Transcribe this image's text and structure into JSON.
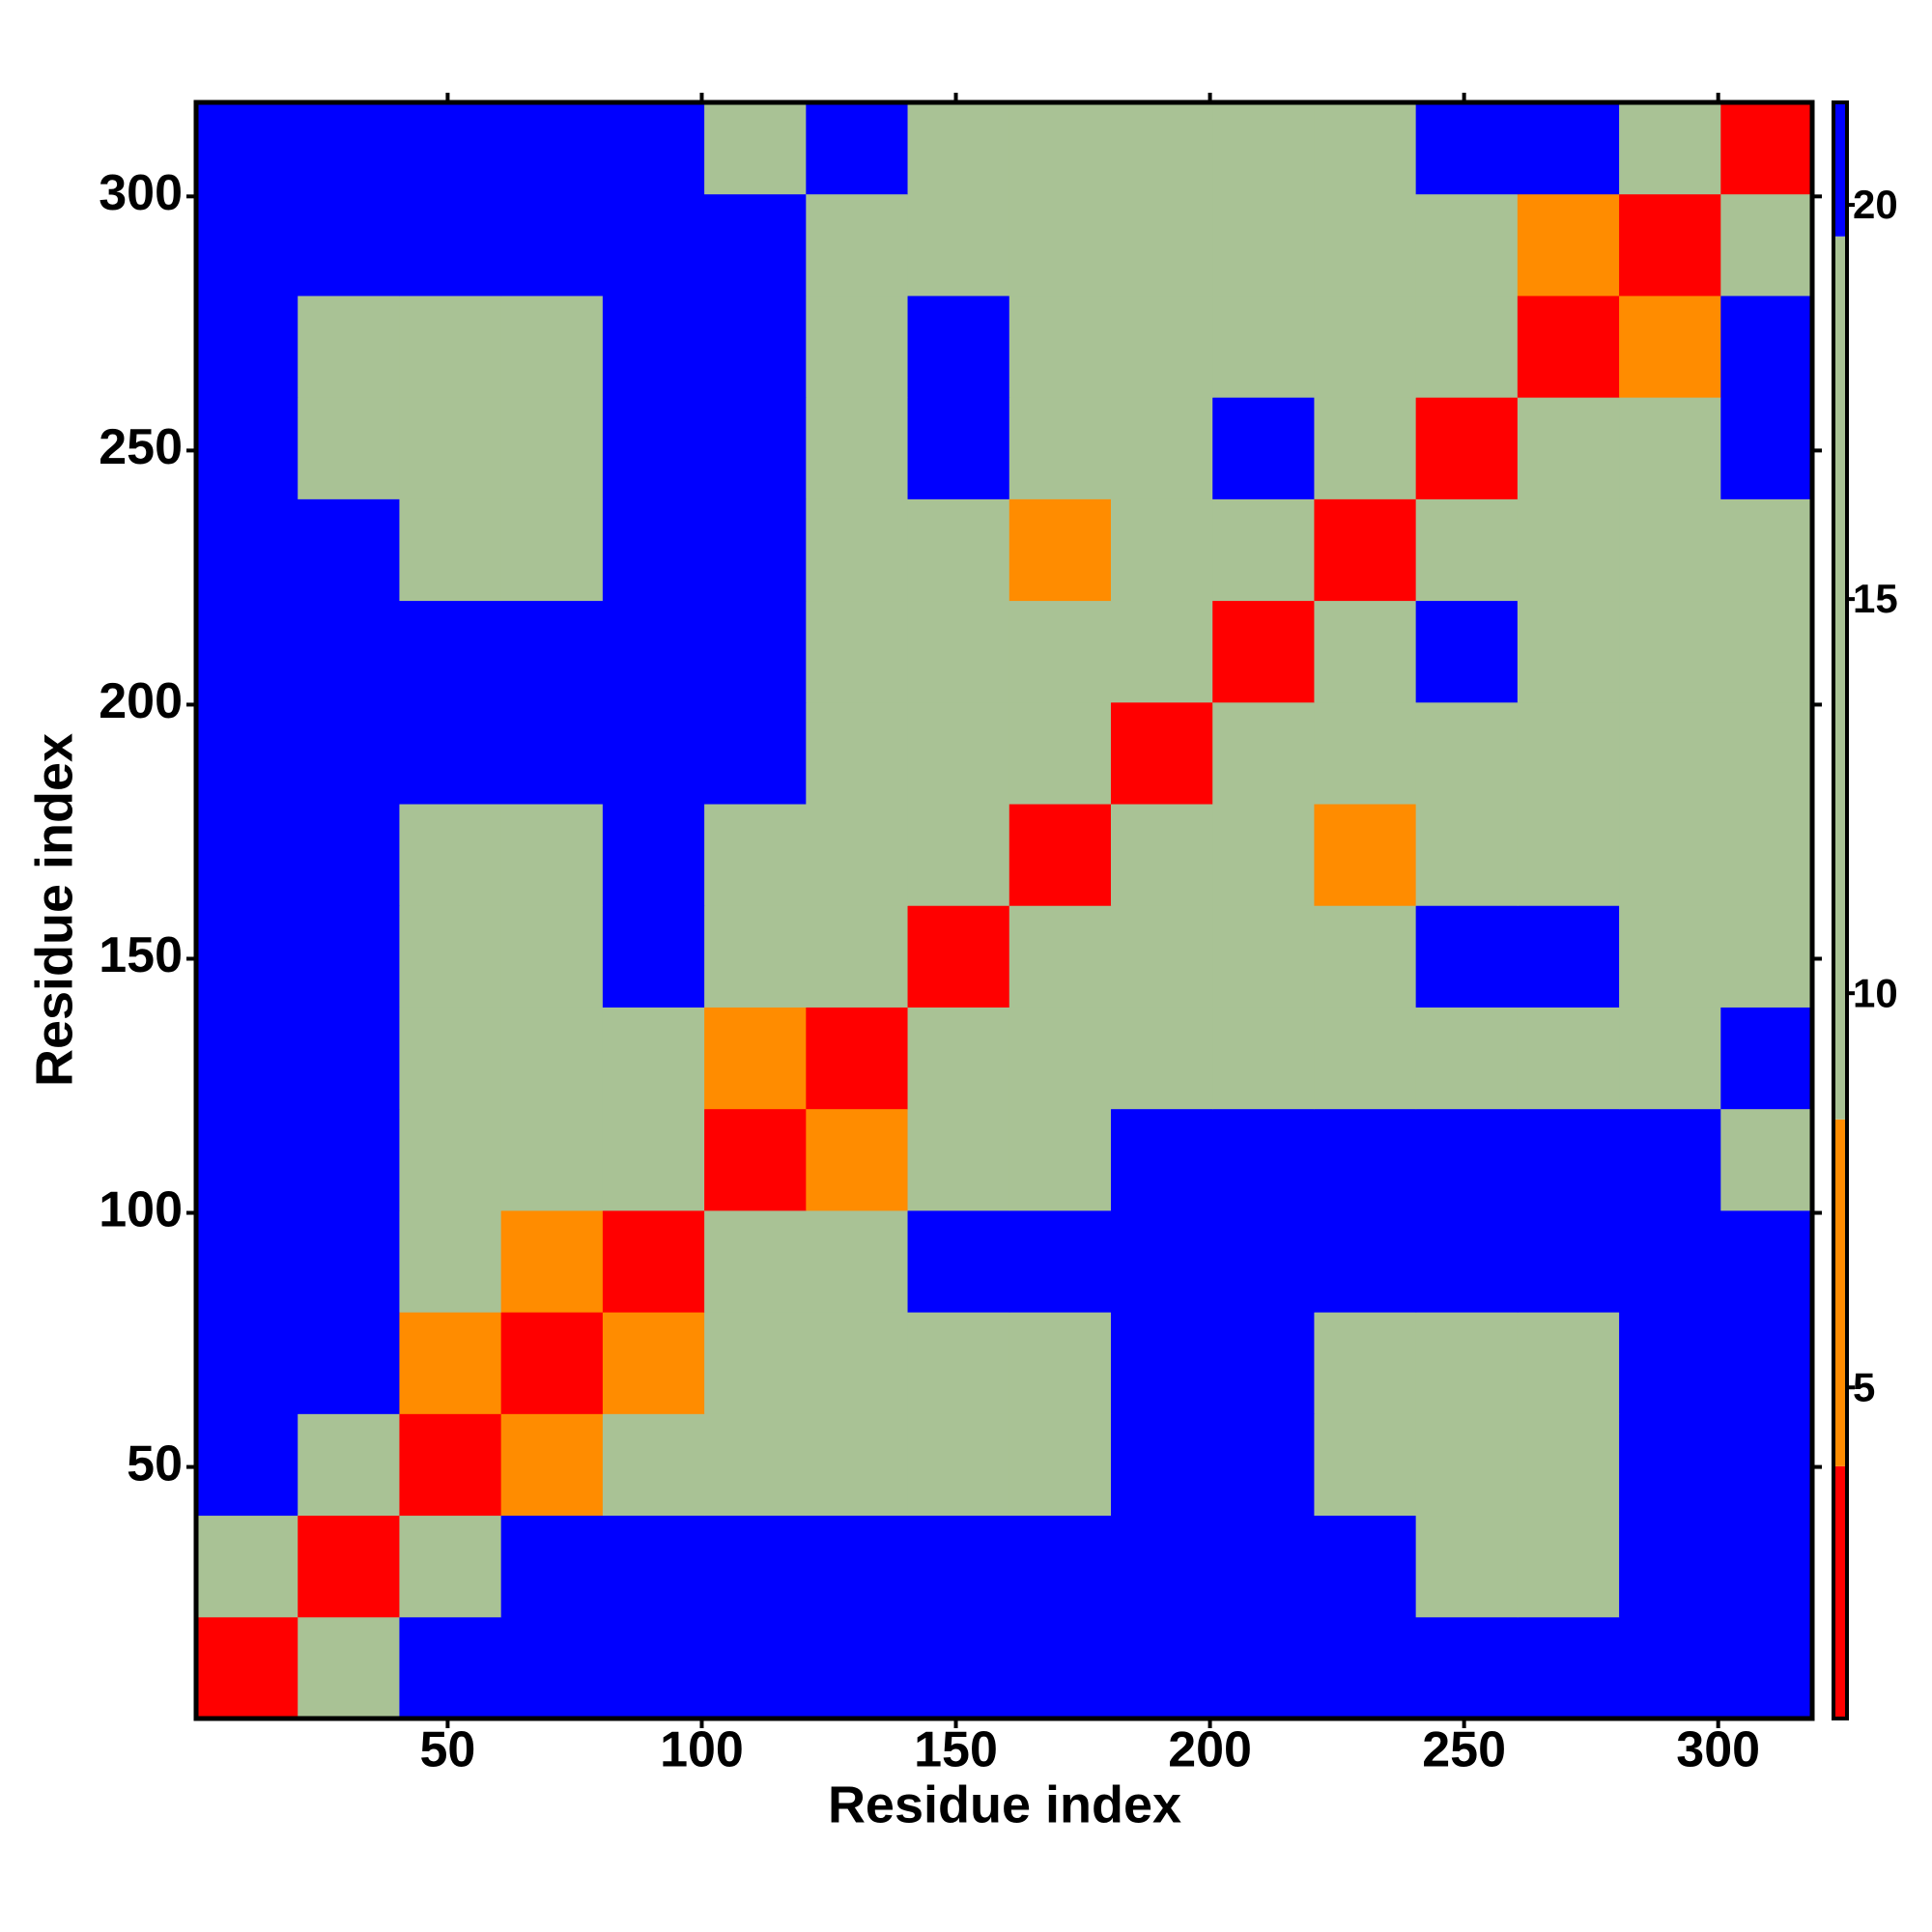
{
  "chart_data": {
    "type": "heatmap",
    "xlabel": "Residue index",
    "ylabel": "Residue index",
    "x_bins": [
      0.5,
      20.5,
      40.5,
      60.5,
      80.5,
      100.5,
      120.5,
      140.5,
      160.5,
      180.5,
      200.5,
      220.5,
      240.5,
      260.5,
      280.5,
      300.5,
      318.5
    ],
    "y_bins": [
      0.5,
      20.5,
      40.5,
      60.5,
      80.5,
      100.5,
      120.5,
      140.5,
      160.5,
      180.5,
      200.5,
      220.5,
      240.5,
      260.5,
      280.5,
      300.5,
      318.5
    ],
    "values": [
      [
        3,
        12,
        21,
        21,
        21,
        21,
        21,
        21,
        21,
        21,
        21,
        21,
        21,
        21,
        21,
        21
      ],
      [
        12,
        3,
        12,
        21,
        21,
        21,
        21,
        21,
        21,
        21,
        21,
        21,
        12,
        12,
        21,
        21
      ],
      [
        21,
        12,
        3,
        7,
        12,
        12,
        12,
        12,
        12,
        21,
        21,
        12,
        12,
        12,
        21,
        21
      ],
      [
        21,
        21,
        7,
        3,
        7,
        12,
        12,
        12,
        12,
        21,
        21,
        12,
        12,
        12,
        21,
        21
      ],
      [
        21,
        21,
        12,
        7,
        3,
        12,
        12,
        21,
        21,
        21,
        21,
        21,
        21,
        21,
        21,
        21
      ],
      [
        21,
        21,
        12,
        12,
        12,
        3,
        7,
        12,
        12,
        21,
        21,
        21,
        21,
        21,
        21,
        12
      ],
      [
        21,
        21,
        12,
        12,
        12,
        7,
        3,
        12,
        12,
        12,
        12,
        12,
        12,
        12,
        12,
        21
      ],
      [
        21,
        21,
        12,
        12,
        21,
        12,
        12,
        3,
        12,
        12,
        12,
        12,
        21,
        21,
        12,
        12
      ],
      [
        21,
        21,
        12,
        12,
        21,
        12,
        12,
        12,
        3,
        12,
        12,
        7,
        12,
        12,
        12,
        12
      ],
      [
        21,
        21,
        21,
        21,
        21,
        21,
        12,
        12,
        12,
        3,
        12,
        12,
        12,
        12,
        12,
        12
      ],
      [
        21,
        21,
        21,
        21,
        21,
        21,
        12,
        12,
        12,
        12,
        3,
        12,
        21,
        12,
        12,
        12
      ],
      [
        21,
        21,
        12,
        12,
        21,
        21,
        12,
        12,
        7,
        12,
        12,
        3,
        12,
        12,
        12,
        12
      ],
      [
        21,
        12,
        12,
        12,
        21,
        21,
        12,
        21,
        12,
        12,
        21,
        12,
        3,
        12,
        12,
        21
      ],
      [
        21,
        12,
        12,
        12,
        21,
        21,
        12,
        21,
        12,
        12,
        12,
        12,
        12,
        3,
        7,
        21
      ],
      [
        21,
        21,
        21,
        21,
        21,
        21,
        12,
        12,
        12,
        12,
        12,
        12,
        12,
        7,
        3,
        12
      ],
      [
        21,
        21,
        21,
        21,
        21,
        12,
        21,
        12,
        12,
        12,
        12,
        12,
        21,
        21,
        12,
        3
      ]
    ],
    "color_breaks": [
      0.8,
      4,
      8.4,
      19.6,
      21.3
    ],
    "colors": [
      "#ff0000",
      "#ff8c00",
      "#a9c295",
      "#0000ff"
    ],
    "xlim": [
      0.5,
      318.5
    ],
    "ylim": [
      0.5,
      318.5
    ],
    "xticks": [
      50,
      100,
      150,
      200,
      250,
      300
    ],
    "yticks": [
      50,
      100,
      150,
      200,
      250,
      300
    ],
    "clim": [
      0.8,
      21.3
    ],
    "cticks": [
      5,
      10,
      15,
      20
    ]
  }
}
